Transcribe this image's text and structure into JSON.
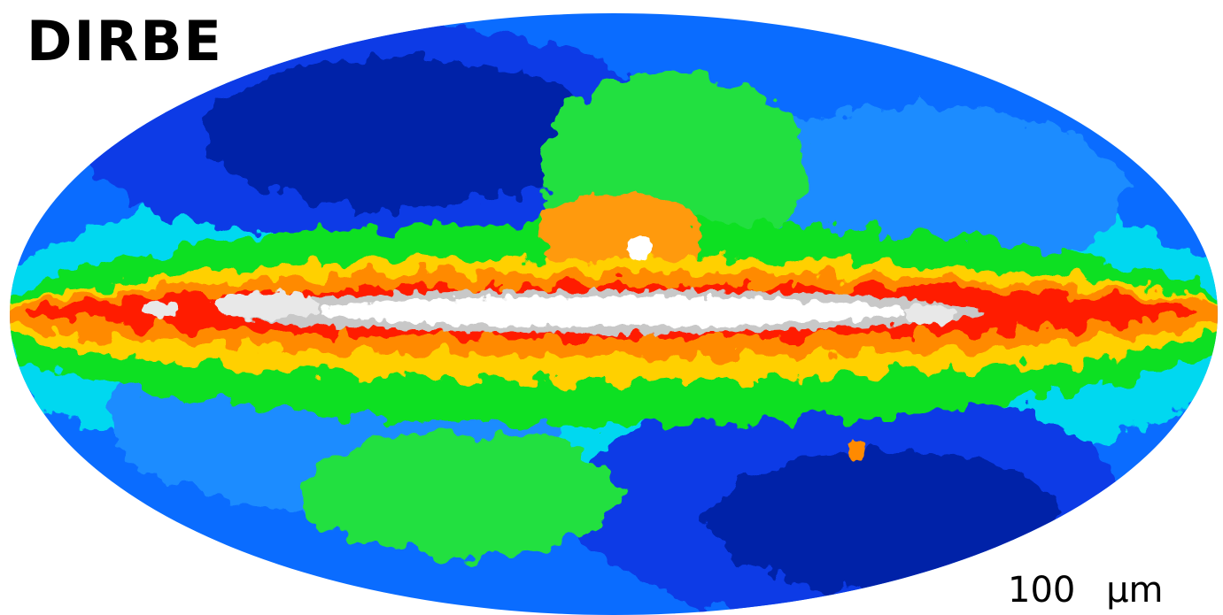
{
  "title": "DIRBE",
  "wavelength_label": "100 µm"
}
